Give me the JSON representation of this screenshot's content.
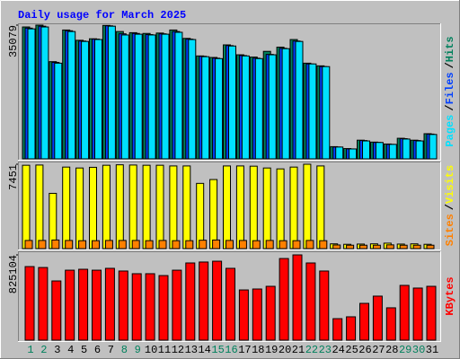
{
  "chart_data": [
    {
      "type": "bar",
      "title": "Daily usage for March 2025",
      "ylim": [
        0,
        35079
      ],
      "yticks": [
        35079
      ],
      "legend_separator": "/",
      "series": [
        {
          "name": "Hits",
          "color": "#00805C",
          "values": [
            34600,
            35079,
            25500,
            33800,
            31100,
            31500,
            35000,
            33400,
            33100,
            32900,
            33000,
            33800,
            31600,
            27000,
            26600,
            29900,
            27300,
            26700,
            28200,
            29300,
            31300,
            25100,
            24400,
            3200,
            2700,
            4900,
            4400,
            3900,
            5400,
            4900,
            6600
          ]
        },
        {
          "name": "Files",
          "color": "#0040FF",
          "values": [
            34300,
            34800,
            25300,
            33600,
            30900,
            31400,
            34900,
            32800,
            32900,
            32600,
            32800,
            33400,
            31400,
            26900,
            26400,
            29700,
            27100,
            26400,
            27400,
            29000,
            30900,
            24900,
            24200,
            3100,
            2600,
            4800,
            4300,
            3800,
            5300,
            4800,
            6500
          ]
        },
        {
          "name": "Pages",
          "color": "#00E0FF",
          "values": [
            34100,
            34600,
            25100,
            33400,
            30800,
            31300,
            34800,
            32500,
            32700,
            32500,
            32700,
            33200,
            31300,
            26800,
            26300,
            29600,
            27000,
            26300,
            27300,
            28900,
            30800,
            24900,
            24200,
            3100,
            2600,
            4700,
            4300,
            3800,
            5200,
            4700,
            6400
          ]
        }
      ]
    },
    {
      "type": "bar",
      "ylim": [
        0,
        7451
      ],
      "yticks": [
        7451
      ],
      "legend_separator": "/",
      "series": [
        {
          "name": "Visits",
          "color": "#FFFF00",
          "values": [
            7360,
            7380,
            4880,
            7200,
            7120,
            7180,
            7360,
            7400,
            7380,
            7360,
            7360,
            7300,
            7300,
            5760,
            6100,
            7300,
            7300,
            7280,
            7120,
            7040,
            7200,
            7451,
            7300,
            420,
            380,
            400,
            420,
            480,
            400,
            420,
            380
          ]
        },
        {
          "name": "Sites",
          "color": "#FF8000",
          "values": [
            720,
            720,
            760,
            720,
            700,
            700,
            720,
            720,
            720,
            700,
            720,
            700,
            700,
            740,
            760,
            720,
            720,
            700,
            720,
            700,
            700,
            720,
            700,
            320,
            300,
            300,
            300,
            330,
            300,
            300,
            300
          ]
        }
      ]
    },
    {
      "type": "bar",
      "ylim": [
        0,
        825104
      ],
      "yticks": [
        825104
      ],
      "categories": [
        "1",
        "2",
        "3",
        "4",
        "5",
        "6",
        "7",
        "8",
        "9",
        "10",
        "11",
        "12",
        "13",
        "14",
        "15",
        "16",
        "17",
        "18",
        "19",
        "20",
        "21",
        "22",
        "23",
        "24",
        "25",
        "26",
        "27",
        "28",
        "29",
        "30",
        "31"
      ],
      "category_colors": [
        "#00805C",
        "#00805C",
        "#000000",
        "#000000",
        "#000000",
        "#000000",
        "#000000",
        "#00805C",
        "#00805C",
        "#000000",
        "#000000",
        "#000000",
        "#000000",
        "#000000",
        "#00805C",
        "#00805C",
        "#000000",
        "#000000",
        "#000000",
        "#000000",
        "#000000",
        "#00805C",
        "#00805C",
        "#000000",
        "#000000",
        "#000000",
        "#000000",
        "#000000",
        "#00805C",
        "#00805C",
        "#000000"
      ],
      "series": [
        {
          "name": "KBytes",
          "color": "#FF0000",
          "values": [
            712000,
            703000,
            573000,
            677000,
            686000,
            677000,
            695000,
            669000,
            643000,
            643000,
            625000,
            677000,
            747000,
            756000,
            764000,
            695000,
            486000,
            495000,
            521000,
            790000,
            825104,
            747000,
            669000,
            208000,
            226000,
            356000,
            426000,
            313000,
            530000,
            504000,
            521000
          ]
        }
      ]
    }
  ]
}
